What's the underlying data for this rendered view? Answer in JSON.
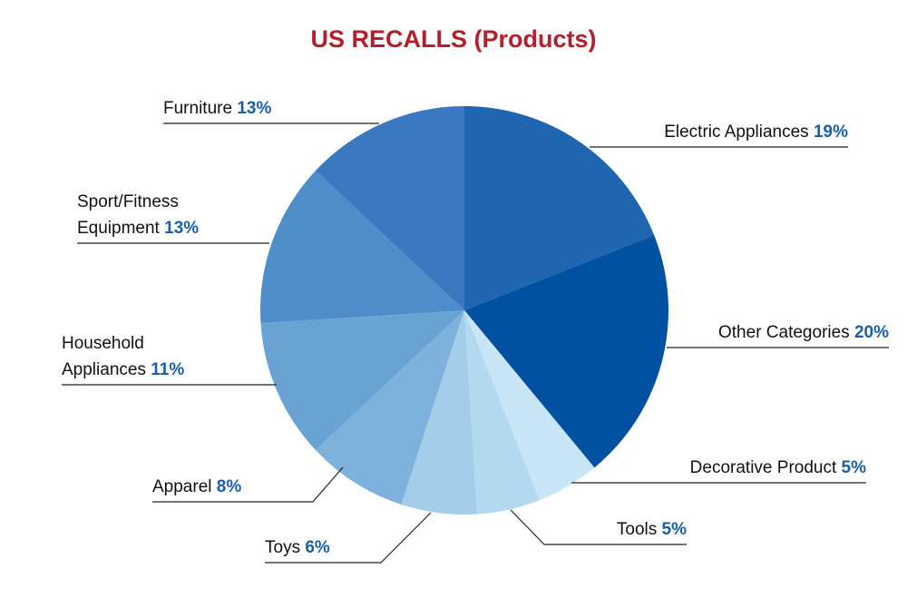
{
  "chart_data": {
    "type": "pie",
    "title": "US RECALLS (Products)",
    "categories": [
      "Electric Appliances",
      "Other Categories",
      "Decorative Product",
      "Tools",
      "Toys",
      "Apparel",
      "Household Appliances",
      "Sport/Fitness Equipment",
      "Furniture"
    ],
    "values": [
      19,
      20,
      5,
      5,
      6,
      8,
      11,
      13,
      13
    ],
    "value_labels": [
      "19%",
      "20%",
      "5%",
      "5%",
      "6%",
      "8%",
      "11%",
      "13%",
      "13%"
    ],
    "colors": [
      "#1f65b0",
      "#0051a2",
      "#c9e6f8",
      "#b3d9f0",
      "#a4cdea",
      "#7eb1dc",
      "#68a3d3",
      "#4f8cca",
      "#3a78bf"
    ]
  }
}
